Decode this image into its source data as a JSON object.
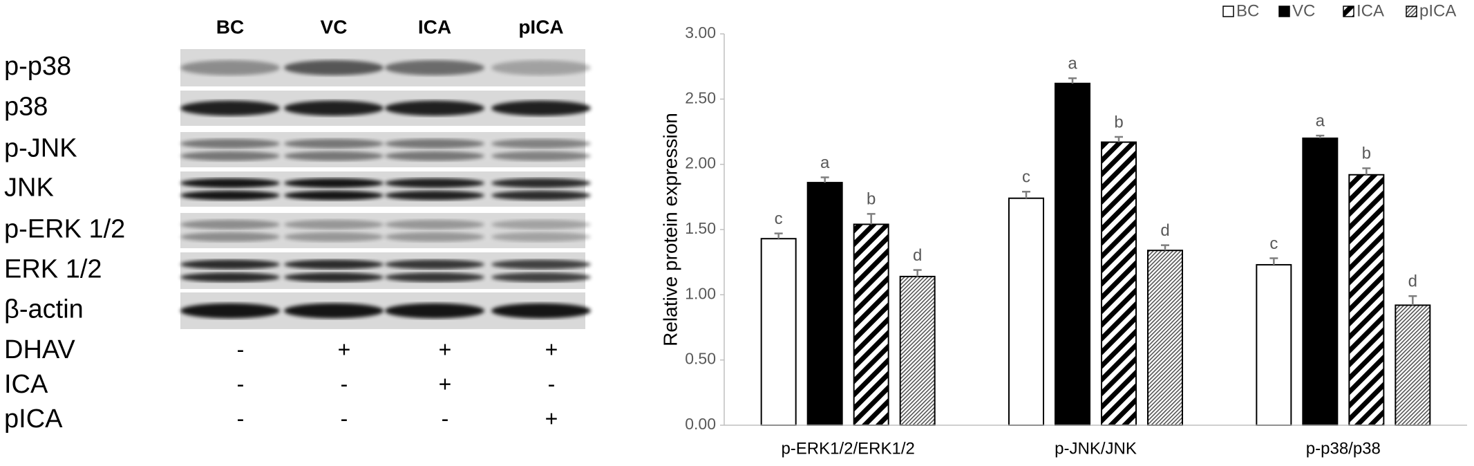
{
  "blot": {
    "lanes": [
      "BC",
      "VC",
      "ICA",
      "pICA"
    ],
    "rows": [
      "p-p38",
      "p38",
      "p-JNK",
      "JNK",
      "p-ERK 1/2",
      "ERK 1/2",
      "β-actin"
    ],
    "treatments": [
      {
        "name": "DHAV",
        "signs": [
          "-",
          "+",
          "+",
          "+"
        ]
      },
      {
        "name": "ICA",
        "signs": [
          "-",
          "-",
          "+",
          "-"
        ]
      },
      {
        "name": "pICA",
        "signs": [
          "-",
          "-",
          "-",
          "+"
        ]
      }
    ]
  },
  "chart_data": {
    "type": "bar",
    "y_label": "Relative protein expression",
    "categories": [
      "p-ERK1/2/ERK1/2",
      "p-JNK/JNK",
      "p-p38/p38"
    ],
    "series": [
      {
        "name": "BC",
        "color": "#ffffff",
        "pattern": "none",
        "values": [
          1.43,
          1.74,
          1.23
        ],
        "errors": [
          0.04,
          0.05,
          0.05
        ],
        "letters": [
          "c",
          "c",
          "c"
        ]
      },
      {
        "name": "VC",
        "color": "#000000",
        "pattern": "solid",
        "values": [
          1.86,
          2.62,
          2.2
        ],
        "errors": [
          0.04,
          0.04,
          0.02
        ],
        "letters": [
          "a",
          "a",
          "a"
        ]
      },
      {
        "name": "ICA",
        "color": "#000000",
        "pattern": "wide-stripes",
        "values": [
          1.54,
          2.17,
          1.92
        ],
        "errors": [
          0.08,
          0.04,
          0.05
        ],
        "letters": [
          "b",
          "b",
          "b"
        ]
      },
      {
        "name": "pICA",
        "color": "#000000",
        "pattern": "fine-stripes",
        "values": [
          1.14,
          1.34,
          0.92
        ],
        "errors": [
          0.05,
          0.04,
          0.07
        ],
        "letters": [
          "d",
          "d",
          "d"
        ]
      }
    ],
    "ylim": [
      0,
      3
    ],
    "yticks": [
      {
        "value": 0,
        "label": "0.00"
      },
      {
        "value": 0.5,
        "label": "0.50"
      },
      {
        "value": 1,
        "label": "1.00"
      },
      {
        "value": 1.5,
        "label": "1.50"
      },
      {
        "value": 2,
        "label": "2.00"
      },
      {
        "value": 2.5,
        "label": "2.50"
      },
      {
        "value": 3,
        "label": "3.00"
      }
    ],
    "grid": false,
    "legend": "top-right"
  }
}
